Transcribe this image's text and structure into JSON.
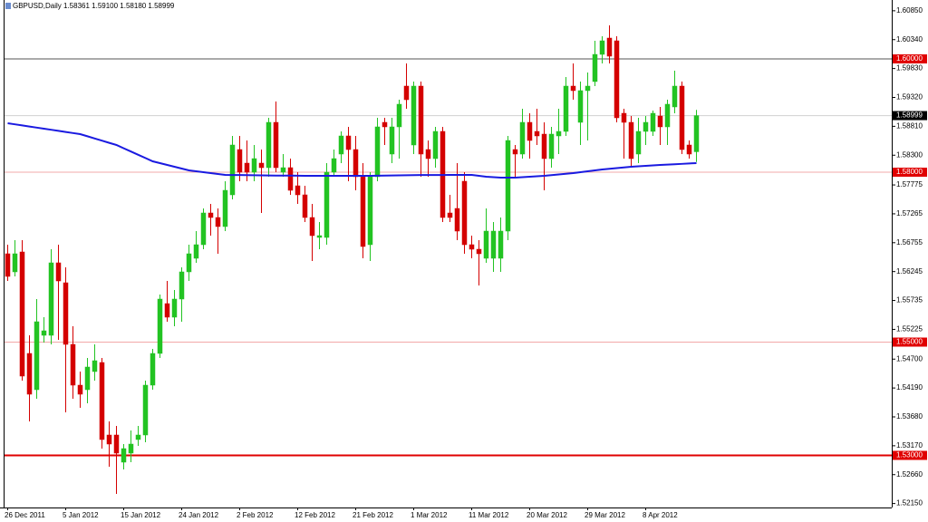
{
  "chart_data": {
    "type": "candlestick",
    "title": "GBPUSD,Daily 1.58361 1.59100 1.58180 1.58999",
    "categories": [
      "26 Dec 2011",
      null,
      null,
      null,
      null,
      null,
      null,
      null,
      "5 Jan 2012",
      null,
      null,
      null,
      null,
      null,
      null,
      null,
      "15 Jan 2012",
      null,
      null,
      null,
      null,
      null,
      null,
      null,
      "24 Jan 2012",
      null,
      null,
      null,
      null,
      null,
      null,
      null,
      "2 Feb 2012",
      null,
      null,
      null,
      null,
      null,
      null,
      null,
      "12 Feb 2012",
      null,
      null,
      null,
      null,
      null,
      null,
      null,
      "21 Feb 2012",
      null,
      null,
      null,
      null,
      null,
      null,
      null,
      "1 Mar 2012",
      null,
      null,
      null,
      null,
      null,
      null,
      null,
      "11 Mar 2012",
      null,
      null,
      null,
      null,
      null,
      null,
      null,
      "20 Mar 2012",
      null,
      null,
      null,
      null,
      null,
      null,
      null,
      "29 Mar 2012",
      null,
      null,
      null,
      null,
      null,
      null,
      null,
      "8 Apr 2012",
      null,
      null,
      null,
      null,
      null,
      null,
      null
    ],
    "open": [
      1.5656,
      1.5624,
      1.56592,
      1.548,
      1.5416,
      1.5512,
      1.5512,
      1.564,
      1.56048,
      1.5496,
      1.5424,
      1.5416,
      1.5448,
      1.5464,
      1.5336,
      1.5336,
      1.5288,
      1.5304,
      1.5328,
      1.5336,
      1.5424,
      1.548,
      1.5568,
      1.5544,
      1.5576,
      1.5624,
      1.5648,
      1.5672,
      1.5728,
      1.572,
      1.5704,
      1.576,
      1.584,
      1.5816,
      1.58,
      1.5816,
      1.5808,
      1.5888,
      1.58,
      1.5808,
      1.5776,
      1.576,
      1.572,
      1.56848,
      1.56848,
      1.58,
      1.5832,
      1.5864,
      1.584,
      1.5792,
      1.5672,
      1.5792,
      1.5888,
      1.5832,
      1.588,
      1.5952,
      1.5848,
      1.5952,
      1.584,
      1.5824,
      1.5872,
      1.5728,
      1.5736,
      1.5784,
      1.5672,
      1.5664,
      1.5648,
      1.5648,
      1.5648,
      1.5696,
      1.584,
      1.5832,
      1.5888,
      1.5872,
      1.58672,
      1.5824,
      1.5864,
      1.5872,
      1.5952,
      1.5888,
      1.5944,
      1.596,
      1.6008,
      1.60368,
      1.6032,
      1.5904,
      1.5888,
      1.5832,
      1.5872,
      1.5872,
      1.58992,
      1.588,
      1.59152,
      1.5952,
      1.5848,
      1.58361
    ],
    "high": [
      1.5672,
      1.568,
      1.568,
      1.5512,
      1.5576,
      1.5544,
      1.5664,
      1.5672,
      1.5632,
      1.5528,
      1.5448,
      1.5472,
      1.5496,
      1.5472,
      1.536,
      1.5352,
      1.532,
      1.5344,
      1.5352,
      1.5432,
      1.5488,
      1.5584,
      1.5608,
      1.5592,
      1.5632,
      1.5672,
      1.5696,
      1.5736,
      1.5744,
      1.5736,
      1.5784,
      1.5864,
      1.5864,
      1.5856,
      1.5848,
      1.584,
      1.5896,
      1.59248,
      1.5832,
      1.5824,
      1.58,
      1.5776,
      1.5744,
      1.5712,
      1.5816,
      1.584,
      1.5872,
      1.588,
      1.5864,
      1.5816,
      1.58,
      1.5896,
      1.5896,
      1.5896,
      1.5928,
      1.5992,
      1.596,
      1.596,
      1.5856,
      1.588,
      1.588,
      1.576,
      1.5816,
      1.58,
      1.5688,
      1.568,
      1.5736,
      1.5712,
      1.572,
      1.5864,
      1.5848,
      1.5912,
      1.5904,
      1.5912,
      1.5888,
      1.588,
      1.5912,
      1.5968,
      1.5992,
      1.596,
      1.5976,
      1.6032,
      1.604,
      1.60592,
      1.604,
      1.5912,
      1.58992,
      1.5896,
      1.58992,
      1.59088,
      1.59152,
      1.5928,
      1.59792,
      1.596,
      1.5856,
      1.591
    ],
    "low": [
      1.5608,
      1.5616,
      1.5432,
      1.536,
      1.54,
      1.54992,
      1.5496,
      1.5504,
      1.5376,
      1.54,
      1.5384,
      1.5392,
      1.5432,
      1.5312,
      1.528,
      1.5232,
      1.52752,
      1.5288,
      1.53168,
      1.53232,
      1.5416,
      1.5472,
      1.5536,
      1.5528,
      1.5536,
      1.5608,
      1.564,
      1.5664,
      1.5688,
      1.5656,
      1.5696,
      1.5752,
      1.5784,
      1.5784,
      1.5784,
      1.5728,
      1.5792,
      1.58,
      1.5792,
      1.576,
      1.5744,
      1.5712,
      1.56432,
      1.5664,
      1.5672,
      1.5792,
      1.5816,
      1.5784,
      1.5768,
      1.5648,
      1.56432,
      1.5784,
      1.5848,
      1.5816,
      1.5824,
      1.5912,
      1.5832,
      1.5792,
      1.5792,
      1.5808,
      1.5712,
      1.5712,
      1.568,
      1.5656,
      1.5648,
      1.56,
      1.564,
      1.5624,
      1.5624,
      1.568,
      1.5792,
      1.5824,
      1.5824,
      1.5848,
      1.5768,
      1.5808,
      1.5832,
      1.5864,
      1.5928,
      1.5848,
      1.5856,
      1.5952,
      1.5992,
      1.5992,
      1.5888,
      1.5824,
      1.5808,
      1.5816,
      1.5848,
      1.5864,
      1.5848,
      1.5848,
      1.5904,
      1.5832,
      1.5824,
      1.5818
    ],
    "close": [
      1.5616,
      1.5656,
      1.544,
      1.5408,
      1.5536,
      1.552,
      1.564,
      1.5608,
      1.5496,
      1.5424,
      1.5408,
      1.5456,
      1.54672,
      1.5328,
      1.532,
      1.5304,
      1.5312,
      1.532,
      1.5336,
      1.5424,
      1.548,
      1.5576,
      1.5544,
      1.5576,
      1.5624,
      1.5656,
      1.5672,
      1.5728,
      1.572,
      1.5704,
      1.5768,
      1.5848,
      1.58,
      1.58,
      1.5824,
      1.5808,
      1.5888,
      1.5808,
      1.5808,
      1.5768,
      1.576,
      1.572,
      1.5688,
      1.5688,
      1.58,
      1.5824,
      1.5864,
      1.584,
      1.5792,
      1.56688,
      1.5792,
      1.588,
      1.588,
      1.588,
      1.592,
      1.5928,
      1.5952,
      1.5832,
      1.5824,
      1.5872,
      1.572,
      1.572,
      1.5696,
      1.5672,
      1.5664,
      1.5656,
      1.5696,
      1.5696,
      1.5696,
      1.5856,
      1.5832,
      1.5888,
      1.5856,
      1.5864,
      1.5824,
      1.58672,
      1.5872,
      1.5952,
      1.5944,
      1.5944,
      1.5952,
      1.6008,
      1.6032,
      1.60048,
      1.5896,
      1.5888,
      1.5824,
      1.5872,
      1.5888,
      1.5904,
      1.588,
      1.592,
      1.5952,
      1.584,
      1.5832,
      1.58999
    ],
    "up_color": "#22c322",
    "down_color": "#d40000",
    "overlay": {
      "color": "#1a1ae0",
      "values": [
        1.58864,
        1.58845,
        1.58826,
        1.58806,
        1.58787,
        1.58768,
        1.58749,
        1.5873,
        1.5871,
        1.58691,
        1.58672,
        1.58634,
        1.58595,
        1.58557,
        1.58518,
        1.5848,
        1.58422,
        1.58365,
        1.58307,
        1.5825,
        1.58192,
        1.5816,
        1.58128,
        1.58096,
        1.58064,
        1.58032,
        1.58016,
        1.58,
        1.57984,
        1.57968,
        1.57952,
        1.5795,
        1.5795,
        1.57948,
        1.57946,
        1.57944,
        1.57942,
        1.5794,
        1.5794,
        1.5794,
        1.57938,
        1.57936,
        1.57936,
        1.57936,
        1.57936,
        1.57936,
        1.57936,
        1.57936,
        1.57936,
        1.57936,
        1.57936,
        1.57938,
        1.5794,
        1.57942,
        1.57944,
        1.57946,
        1.57948,
        1.5795,
        1.5795,
        1.5795,
        1.5795,
        1.57952,
        1.57952,
        1.57952,
        1.57952,
        1.57936,
        1.5792,
        1.57912,
        1.57904,
        1.57904,
        1.57904,
        1.57912,
        1.5792,
        1.57928,
        1.57936,
        1.57948,
        1.5796,
        1.57972,
        1.57984,
        1.58,
        1.58016,
        1.58032,
        1.58048,
        1.5806,
        1.58072,
        1.58084,
        1.58096,
        1.58104,
        1.58112,
        1.5812,
        1.58128,
        1.58134,
        1.5814,
        1.58147,
        1.58154,
        1.5816
      ]
    },
    "ylim": [
      1.5208,
      1.6104
    ],
    "yticks": [
      {
        "value": 1.6085,
        "label": "1.60850"
      },
      {
        "value": 1.6034,
        "label": "1.60340"
      },
      {
        "value": 1.5983,
        "label": "1.59830"
      },
      {
        "value": 1.5932,
        "label": "1.59320"
      },
      {
        "value": 1.5881,
        "label": "1.58810"
      },
      {
        "value": 1.583,
        "label": "1.58300"
      },
      1.57775,
      1.57265,
      1.56755,
      1.56245,
      1.55735,
      1.55225,
      {
        "value": 1.547,
        "label": "1.54700"
      },
      {
        "value": 1.5419,
        "label": "1.54190"
      },
      {
        "value": 1.5368,
        "label": "1.53680"
      },
      {
        "value": 1.5317,
        "label": "1.53170"
      },
      {
        "value": 1.5266,
        "label": "1.52660"
      },
      {
        "value": 1.5215,
        "label": "1.52150"
      }
    ],
    "levels": [
      {
        "value": 1.6,
        "label": "1.60000",
        "color": "#555555",
        "label_bg": "#e00000",
        "width": 1
      },
      {
        "value": 1.58999,
        "label": "1.58999",
        "color": "#d0d0d0",
        "label_bg": "#000000",
        "width": 1
      },
      {
        "value": 1.58,
        "label": "1.58000",
        "color": "#f2a8a8",
        "label_bg": "#e00000",
        "width": 1
      },
      {
        "value": 1.55,
        "label": "1.55000",
        "color": "#f2a8a8",
        "label_bg": "#e00000",
        "width": 1
      },
      {
        "value": 1.53,
        "label": "1.53000",
        "color": "#e00000",
        "label_bg": "#e00000",
        "width": 2
      }
    ]
  }
}
